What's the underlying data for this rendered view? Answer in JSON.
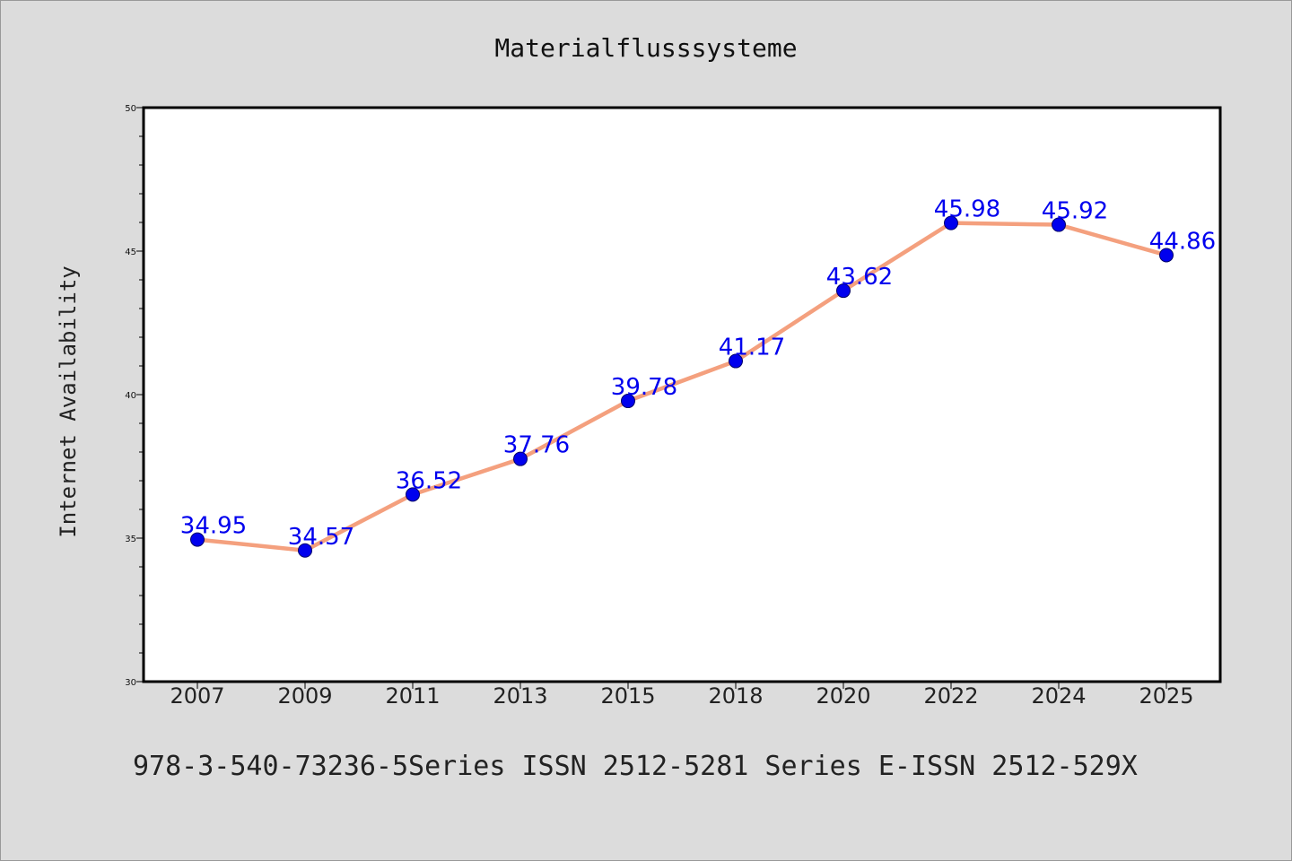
{
  "chart_data": {
    "type": "line",
    "title": "Materialflusssysteme",
    "ylabel": "Internet Availability",
    "xlabel": "",
    "footer": "978-3-540-73236-5Series ISSN 2512-5281 Series E-ISSN 2512-529X",
    "categories": [
      "2007",
      "2009",
      "2011",
      "2013",
      "2015",
      "2018",
      "2020",
      "2022",
      "2024",
      "2025"
    ],
    "values": [
      34.95,
      34.57,
      36.52,
      37.76,
      39.78,
      41.17,
      43.62,
      45.98,
      45.92,
      44.86
    ],
    "data_labels": [
      "34.95",
      "34.57",
      "36.52",
      "37.76",
      "39.78",
      "41.17",
      "43.62",
      "45.98",
      "45.92",
      "44.86"
    ],
    "ylim": [
      30,
      50
    ],
    "y_major_ticks": [
      30,
      35,
      40,
      45,
      50
    ],
    "y_minor_step": 1,
    "grid": false,
    "colors": {
      "line": "#f4a07e",
      "marker": "#0000ee",
      "label": "#0000ee",
      "background": "#dcdcdc",
      "plot_background": "#ffffff"
    }
  }
}
